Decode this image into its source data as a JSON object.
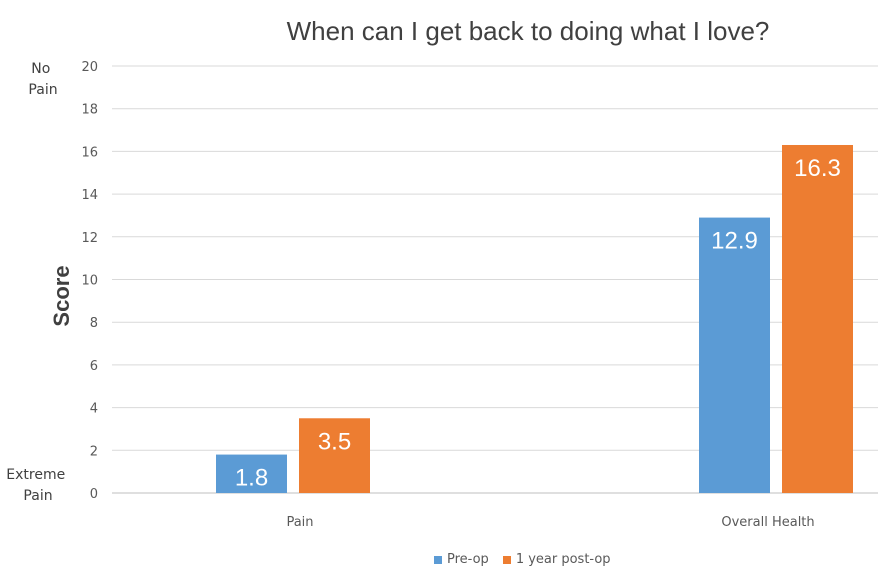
{
  "chart_data": {
    "type": "bar",
    "title": "When can I get back to doing what I love?",
    "ylabel": "Score",
    "xlabel": "",
    "ylim": [
      0,
      20
    ],
    "yticks": [
      0,
      2,
      4,
      6,
      8,
      10,
      12,
      14,
      16,
      18,
      20
    ],
    "y_annotations": {
      "top": "No Pain",
      "bottom": "Extreme Pain"
    },
    "categories": [
      "Pain",
      "Overall Health"
    ],
    "series": [
      {
        "name": "Pre-op",
        "values": [
          1.8,
          12.9
        ],
        "color": "#5B9BD5"
      },
      {
        "name": "1 year post-op",
        "values": [
          3.5,
          16.3
        ],
        "color": "#ED7D31"
      }
    ],
    "data_labels": [
      [
        "1.8",
        "12.9"
      ],
      [
        "3.5",
        "16.3"
      ]
    ],
    "grid": true,
    "legend": "bottom"
  }
}
